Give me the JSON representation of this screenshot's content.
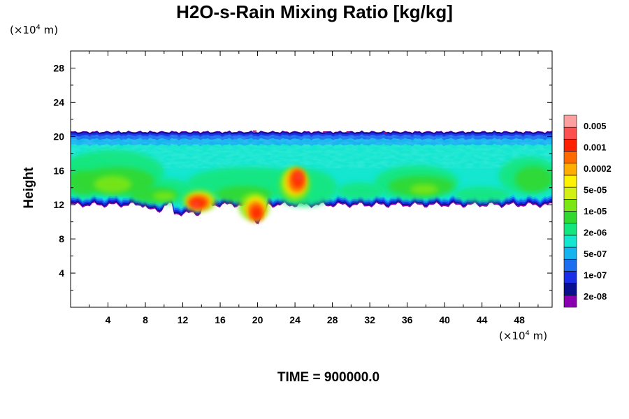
{
  "chart_data": {
    "type": "heatmap",
    "title": "H2O-s-Rain Mixing Ratio [kg/kg]",
    "xlabel": "",
    "ylabel": "Height",
    "x_unit_label": "10",
    "x_unit_exp": "4",
    "x_unit_unit": "m",
    "y_unit_label": "10",
    "y_unit_exp": "4",
    "y_unit_unit": "m",
    "xlim": [
      0,
      51.5
    ],
    "ylim": [
      0,
      30
    ],
    "x_ticks": [
      "4",
      "8",
      "12",
      "16",
      "20",
      "24",
      "28",
      "32",
      "36",
      "40",
      "44",
      "48"
    ],
    "y_ticks": [
      "4",
      "8",
      "12",
      "16",
      "20",
      "24",
      "28"
    ],
    "x_tick_values": [
      4,
      8,
      12,
      16,
      20,
      24,
      28,
      32,
      36,
      40,
      44,
      48
    ],
    "y_tick_values": [
      4,
      8,
      12,
      16,
      20,
      24,
      28
    ],
    "colorbar": {
      "labels": [
        "0.005",
        "0.001",
        "0.0002",
        "5e-05",
        "1e-05",
        "2e-06",
        "5e-07",
        "1e-07",
        "2e-08"
      ],
      "colors": [
        "#8a00b0",
        "#0a1090",
        "#1a2ee8",
        "#1a6ef0",
        "#15b4f0",
        "#14e6d0",
        "#14e67e",
        "#30d830",
        "#7ae614",
        "#d2f014",
        "#fff200",
        "#ffae00",
        "#ff6a00",
        "#ff2000",
        "#ff5050",
        "#ffa0a0"
      ]
    },
    "cloud_layer": {
      "x_range": [
        0,
        51.5
      ],
      "top_height": 20.5,
      "base_height": 12.5
    },
    "annotation": "TIME = 900000.0"
  }
}
